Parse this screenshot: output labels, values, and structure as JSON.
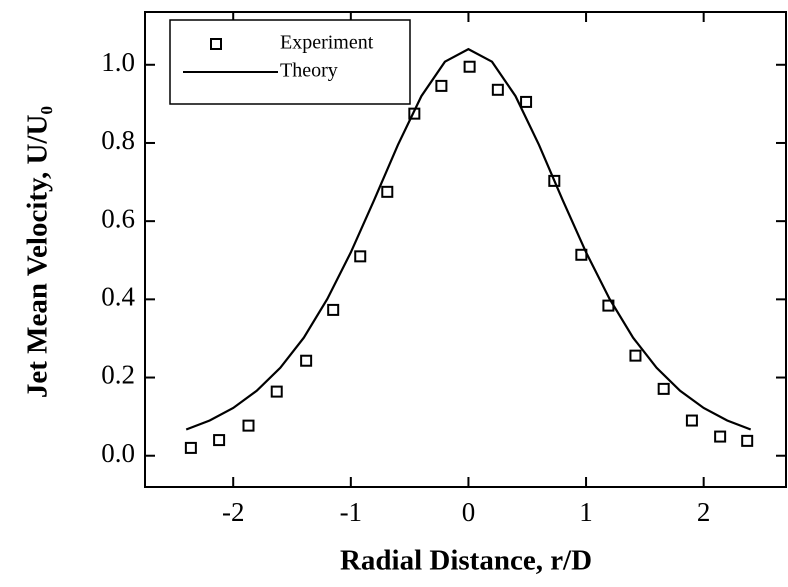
{
  "chart_data": {
    "type": "scatter",
    "xlabel": "Radial Distance, r/D",
    "ylabel": "Jet Mean Velocity, U/U₀",
    "xlim": [
      -2.75,
      2.7
    ],
    "ylim": [
      -0.08,
      1.135
    ],
    "xticks": [
      -2,
      -1,
      0,
      1,
      2
    ],
    "yticks": [
      {
        "value": 0,
        "label": "0.0"
      },
      0.2,
      0.4,
      0.6,
      0.8,
      {
        "value": 1,
        "label": "1.0"
      }
    ],
    "legend": "upper left",
    "series": [
      {
        "name": "Experiment",
        "style": "marker",
        "color": "#000000",
        "x": [
          -2.36,
          -2.12,
          -1.87,
          -1.63,
          -1.38,
          -1.15,
          -0.92,
          -0.69,
          -0.46,
          -0.23,
          0.01,
          0.25,
          0.49,
          0.73,
          0.96,
          1.19,
          1.42,
          1.66,
          1.9,
          2.14,
          2.37
        ],
        "values": [
          0.02,
          0.04,
          0.077,
          0.164,
          0.243,
          0.373,
          0.51,
          0.675,
          0.875,
          0.946,
          0.995,
          0.936,
          0.905,
          0.703,
          0.514,
          0.384,
          0.256,
          0.171,
          0.09,
          0.049,
          0.038
        ]
      },
      {
        "name": "Theory",
        "style": "line",
        "color": "#000000",
        "x": [
          -2.4,
          -2.2,
          -2.0,
          -1.8,
          -1.6,
          -1.4,
          -1.2,
          -1.0,
          -0.8,
          -0.6,
          -0.4,
          -0.2,
          0.0,
          0.2,
          0.4,
          0.6,
          0.8,
          1.0,
          1.2,
          1.4,
          1.6,
          1.8,
          2.0,
          2.2,
          2.4
        ],
        "values": [
          0.067,
          0.09,
          0.122,
          0.166,
          0.225,
          0.302,
          0.401,
          0.52,
          0.655,
          0.795,
          0.92,
          1.008,
          1.04,
          1.008,
          0.92,
          0.795,
          0.655,
          0.52,
          0.401,
          0.302,
          0.225,
          0.166,
          0.122,
          0.09,
          0.067
        ]
      }
    ]
  }
}
